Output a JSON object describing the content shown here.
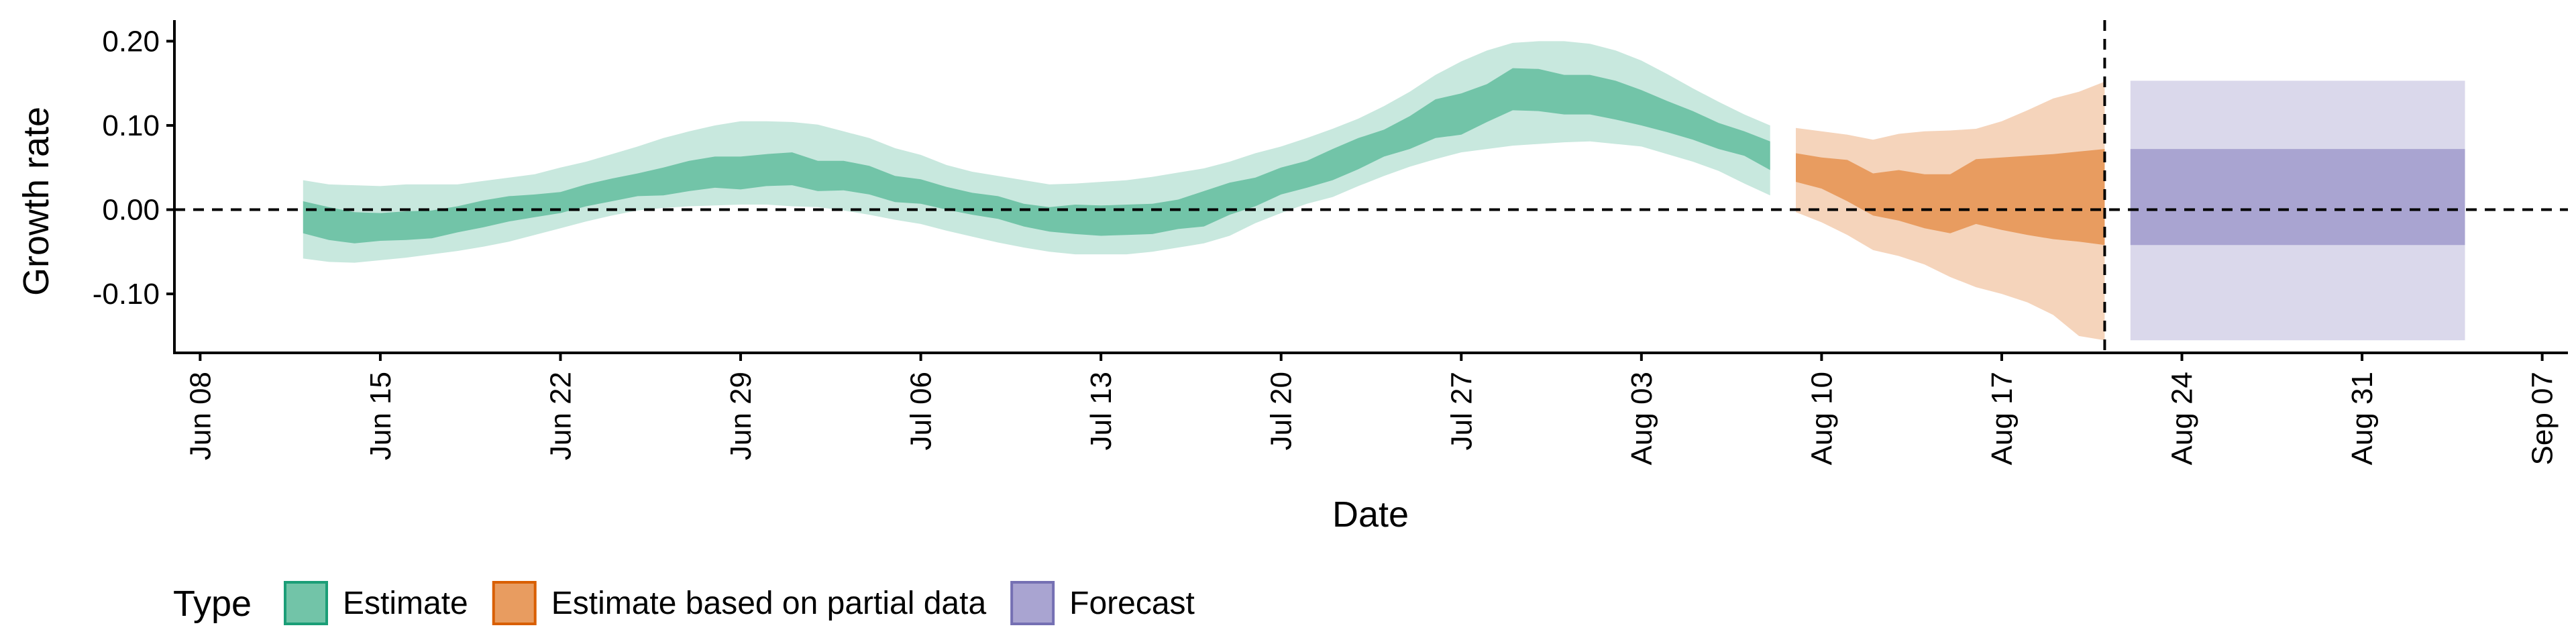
{
  "chart_data": {
    "type": "area",
    "xlabel": "Date",
    "ylabel": "Growth rate",
    "xlim": [
      "2020-06-07",
      "2020-09-08"
    ],
    "ylim": [
      -0.17,
      0.225
    ],
    "x_ticks": [
      {
        "date": "2020-06-08",
        "label": "Jun 08"
      },
      {
        "date": "2020-06-15",
        "label": "Jun 15"
      },
      {
        "date": "2020-06-22",
        "label": "Jun 22"
      },
      {
        "date": "2020-06-29",
        "label": "Jun 29"
      },
      {
        "date": "2020-07-06",
        "label": "Jul 06"
      },
      {
        "date": "2020-07-13",
        "label": "Jul 13"
      },
      {
        "date": "2020-07-20",
        "label": "Jul 20"
      },
      {
        "date": "2020-07-27",
        "label": "Jul 27"
      },
      {
        "date": "2020-08-03",
        "label": "Aug 03"
      },
      {
        "date": "2020-08-10",
        "label": "Aug 10"
      },
      {
        "date": "2020-08-17",
        "label": "Aug 17"
      },
      {
        "date": "2020-08-24",
        "label": "Aug 24"
      },
      {
        "date": "2020-08-31",
        "label": "Aug 31"
      },
      {
        "date": "2020-09-07",
        "label": "Sep 07"
      }
    ],
    "y_ticks": [
      {
        "value": 0.2,
        "label": "0.20"
      },
      {
        "value": 0.1,
        "label": "0.10"
      },
      {
        "value": 0.0,
        "label": "0.00"
      },
      {
        "value": -0.1,
        "label": "-0.10"
      }
    ],
    "reference_lines": {
      "horizontal_y": 0.0,
      "vertical_date": "2020-08-21"
    },
    "grid": false,
    "legend": {
      "title": "Type",
      "position": "bottom",
      "entries": [
        {
          "label": "Estimate",
          "fill": "#72c4a8",
          "stroke": "#1b9e77"
        },
        {
          "label": "Estimate based on partial data",
          "fill": "#e89c60",
          "stroke": "#d95f02"
        },
        {
          "label": "Forecast",
          "fill": "#a9a4d1",
          "stroke": "#7570b3"
        }
      ]
    },
    "series": [
      {
        "name": "Estimate",
        "color_inner": "#72c4a8",
        "color_outer": "#c8e8de",
        "points": [
          {
            "date": "2020-06-12",
            "lo90": -0.058,
            "lo50": -0.028,
            "hi50": 0.01,
            "hi90": 0.035
          },
          {
            "date": "2020-06-13",
            "lo90": -0.062,
            "lo50": -0.036,
            "hi50": 0.003,
            "hi90": 0.03
          },
          {
            "date": "2020-06-14",
            "lo90": -0.063,
            "lo50": -0.04,
            "hi50": -0.003,
            "hi90": 0.029
          },
          {
            "date": "2020-06-15",
            "lo90": -0.06,
            "lo50": -0.037,
            "hi50": -0.004,
            "hi90": 0.028
          },
          {
            "date": "2020-06-16",
            "lo90": -0.057,
            "lo50": -0.036,
            "hi50": -0.002,
            "hi90": 0.03
          },
          {
            "date": "2020-06-17",
            "lo90": -0.053,
            "lo50": -0.034,
            "hi50": -0.001,
            "hi90": 0.03
          },
          {
            "date": "2020-06-18",
            "lo90": -0.049,
            "lo50": -0.027,
            "hi50": 0.004,
            "hi90": 0.03
          },
          {
            "date": "2020-06-19",
            "lo90": -0.044,
            "lo50": -0.021,
            "hi50": 0.011,
            "hi90": 0.034
          },
          {
            "date": "2020-06-20",
            "lo90": -0.038,
            "lo50": -0.014,
            "hi50": 0.016,
            "hi90": 0.038
          },
          {
            "date": "2020-06-21",
            "lo90": -0.03,
            "lo50": -0.009,
            "hi50": 0.018,
            "hi90": 0.042
          },
          {
            "date": "2020-06-22",
            "lo90": -0.022,
            "lo50": -0.004,
            "hi50": 0.021,
            "hi90": 0.05
          },
          {
            "date": "2020-06-23",
            "lo90": -0.014,
            "lo50": 0.004,
            "hi50": 0.03,
            "hi90": 0.057
          },
          {
            "date": "2020-06-24",
            "lo90": -0.007,
            "lo50": 0.01,
            "hi50": 0.037,
            "hi90": 0.066
          },
          {
            "date": "2020-06-25",
            "lo90": -0.001,
            "lo50": 0.016,
            "hi50": 0.043,
            "hi90": 0.075
          },
          {
            "date": "2020-06-26",
            "lo90": 0.002,
            "lo50": 0.017,
            "hi50": 0.05,
            "hi90": 0.085
          },
          {
            "date": "2020-06-27",
            "lo90": 0.004,
            "lo50": 0.022,
            "hi50": 0.058,
            "hi90": 0.093
          },
          {
            "date": "2020-06-28",
            "lo90": 0.005,
            "lo50": 0.026,
            "hi50": 0.063,
            "hi90": 0.1
          },
          {
            "date": "2020-06-29",
            "lo90": 0.006,
            "lo50": 0.024,
            "hi50": 0.063,
            "hi90": 0.105
          },
          {
            "date": "2020-06-30",
            "lo90": 0.006,
            "lo50": 0.028,
            "hi50": 0.066,
            "hi90": 0.105
          },
          {
            "date": "2020-07-01",
            "lo90": 0.004,
            "lo50": 0.029,
            "hi50": 0.068,
            "hi90": 0.104
          },
          {
            "date": "2020-07-02",
            "lo90": 0.003,
            "lo50": 0.022,
            "hi50": 0.058,
            "hi90": 0.101
          },
          {
            "date": "2020-07-03",
            "lo90": -0.001,
            "lo50": 0.023,
            "hi50": 0.058,
            "hi90": 0.093
          },
          {
            "date": "2020-07-04",
            "lo90": -0.006,
            "lo50": 0.018,
            "hi50": 0.052,
            "hi90": 0.085
          },
          {
            "date": "2020-07-05",
            "lo90": -0.012,
            "lo50": 0.009,
            "hi50": 0.04,
            "hi90": 0.073
          },
          {
            "date": "2020-07-06",
            "lo90": -0.017,
            "lo50": 0.007,
            "hi50": 0.036,
            "hi90": 0.065
          },
          {
            "date": "2020-07-07",
            "lo90": -0.025,
            "lo50": 0.0,
            "hi50": 0.027,
            "hi90": 0.053
          },
          {
            "date": "2020-07-08",
            "lo90": -0.032,
            "lo50": -0.006,
            "hi50": 0.02,
            "hi90": 0.045
          },
          {
            "date": "2020-07-09",
            "lo90": -0.039,
            "lo50": -0.011,
            "hi50": 0.016,
            "hi90": 0.04
          },
          {
            "date": "2020-07-10",
            "lo90": -0.045,
            "lo50": -0.02,
            "hi50": 0.007,
            "hi90": 0.035
          },
          {
            "date": "2020-07-11",
            "lo90": -0.05,
            "lo50": -0.026,
            "hi50": 0.003,
            "hi90": 0.03
          },
          {
            "date": "2020-07-12",
            "lo90": -0.053,
            "lo50": -0.029,
            "hi50": 0.006,
            "hi90": 0.031
          },
          {
            "date": "2020-07-13",
            "lo90": -0.053,
            "lo50": -0.031,
            "hi50": 0.005,
            "hi90": 0.033
          },
          {
            "date": "2020-07-14",
            "lo90": -0.053,
            "lo50": -0.03,
            "hi50": 0.006,
            "hi90": 0.035
          },
          {
            "date": "2020-07-15",
            "lo90": -0.05,
            "lo50": -0.029,
            "hi50": 0.007,
            "hi90": 0.039
          },
          {
            "date": "2020-07-16",
            "lo90": -0.045,
            "lo50": -0.023,
            "hi50": 0.012,
            "hi90": 0.044
          },
          {
            "date": "2020-07-17",
            "lo90": -0.04,
            "lo50": -0.02,
            "hi50": 0.022,
            "hi90": 0.049
          },
          {
            "date": "2020-07-18",
            "lo90": -0.031,
            "lo50": -0.006,
            "hi50": 0.032,
            "hi90": 0.057
          },
          {
            "date": "2020-07-19",
            "lo90": -0.016,
            "lo50": 0.004,
            "hi50": 0.038,
            "hi90": 0.067
          },
          {
            "date": "2020-07-20",
            "lo90": -0.004,
            "lo50": 0.018,
            "hi50": 0.05,
            "hi90": 0.075
          },
          {
            "date": "2020-07-21",
            "lo90": 0.007,
            "lo50": 0.026,
            "hi50": 0.058,
            "hi90": 0.085
          },
          {
            "date": "2020-07-22",
            "lo90": 0.015,
            "lo50": 0.035,
            "hi50": 0.072,
            "hi90": 0.096
          },
          {
            "date": "2020-07-23",
            "lo90": 0.028,
            "lo50": 0.048,
            "hi50": 0.085,
            "hi90": 0.108
          },
          {
            "date": "2020-07-24",
            "lo90": 0.04,
            "lo50": 0.063,
            "hi50": 0.095,
            "hi90": 0.123
          },
          {
            "date": "2020-07-25",
            "lo90": 0.051,
            "lo50": 0.072,
            "hi50": 0.111,
            "hi90": 0.14
          },
          {
            "date": "2020-07-26",
            "lo90": 0.06,
            "lo50": 0.085,
            "hi50": 0.131,
            "hi90": 0.16
          },
          {
            "date": "2020-07-27",
            "lo90": 0.068,
            "lo50": 0.089,
            "hi50": 0.138,
            "hi90": 0.176
          },
          {
            "date": "2020-07-28",
            "lo90": 0.072,
            "lo50": 0.104,
            "hi50": 0.149,
            "hi90": 0.189
          },
          {
            "date": "2020-07-29",
            "lo90": 0.076,
            "lo50": 0.118,
            "hi50": 0.168,
            "hi90": 0.198
          },
          {
            "date": "2020-07-30",
            "lo90": 0.078,
            "lo50": 0.117,
            "hi50": 0.167,
            "hi90": 0.2
          },
          {
            "date": "2020-07-31",
            "lo90": 0.08,
            "lo50": 0.113,
            "hi50": 0.16,
            "hi90": 0.2
          },
          {
            "date": "2020-08-01",
            "lo90": 0.081,
            "lo50": 0.113,
            "hi50": 0.16,
            "hi90": 0.197
          },
          {
            "date": "2020-08-02",
            "lo90": 0.078,
            "lo50": 0.107,
            "hi50": 0.153,
            "hi90": 0.189
          },
          {
            "date": "2020-08-03",
            "lo90": 0.075,
            "lo50": 0.1,
            "hi50": 0.142,
            "hi90": 0.177
          },
          {
            "date": "2020-08-04",
            "lo90": 0.066,
            "lo50": 0.092,
            "hi50": 0.129,
            "hi90": 0.161
          },
          {
            "date": "2020-08-05",
            "lo90": 0.057,
            "lo50": 0.083,
            "hi50": 0.117,
            "hi90": 0.144
          },
          {
            "date": "2020-08-06",
            "lo90": 0.046,
            "lo50": 0.072,
            "hi50": 0.103,
            "hi90": 0.128
          },
          {
            "date": "2020-08-07",
            "lo90": 0.031,
            "lo50": 0.064,
            "hi50": 0.093,
            "hi90": 0.113
          },
          {
            "date": "2020-08-08",
            "lo90": 0.017,
            "lo50": 0.047,
            "hi50": 0.081,
            "hi90": 0.1
          }
        ]
      },
      {
        "name": "Estimate based on partial data",
        "color_inner": "#e89c60",
        "color_outer": "#f5d4bb",
        "points": [
          {
            "date": "2020-08-09",
            "lo90": -0.003,
            "lo50": 0.033,
            "hi50": 0.067,
            "hi90": 0.097
          },
          {
            "date": "2020-08-10",
            "lo90": -0.015,
            "lo50": 0.025,
            "hi50": 0.062,
            "hi90": 0.093
          },
          {
            "date": "2020-08-11",
            "lo90": -0.03,
            "lo50": 0.01,
            "hi50": 0.059,
            "hi90": 0.089
          },
          {
            "date": "2020-08-12",
            "lo90": -0.048,
            "lo50": -0.007,
            "hi50": 0.043,
            "hi90": 0.083
          },
          {
            "date": "2020-08-13",
            "lo90": -0.055,
            "lo50": -0.013,
            "hi50": 0.047,
            "hi90": 0.09
          },
          {
            "date": "2020-08-14",
            "lo90": -0.065,
            "lo50": -0.022,
            "hi50": 0.042,
            "hi90": 0.093
          },
          {
            "date": "2020-08-15",
            "lo90": -0.08,
            "lo50": -0.028,
            "hi50": 0.042,
            "hi90": 0.094
          },
          {
            "date": "2020-08-16",
            "lo90": -0.092,
            "lo50": -0.017,
            "hi50": 0.06,
            "hi90": 0.096
          },
          {
            "date": "2020-08-17",
            "lo90": -0.1,
            "lo50": -0.024,
            "hi50": 0.062,
            "hi90": 0.105
          },
          {
            "date": "2020-08-18",
            "lo90": -0.11,
            "lo50": -0.03,
            "hi50": 0.064,
            "hi90": 0.118
          },
          {
            "date": "2020-08-19",
            "lo90": -0.125,
            "lo50": -0.035,
            "hi50": 0.066,
            "hi90": 0.132
          },
          {
            "date": "2020-08-20",
            "lo90": -0.15,
            "lo50": -0.038,
            "hi50": 0.069,
            "hi90": 0.14
          },
          {
            "date": "2020-08-21",
            "lo90": -0.155,
            "lo50": -0.042,
            "hi50": 0.072,
            "hi90": 0.152
          }
        ]
      },
      {
        "name": "Forecast",
        "color_inner": "#a9a4d1",
        "color_outer": "#dad8eb",
        "points": [
          {
            "date": "2020-08-22",
            "lo90": -0.155,
            "lo50": -0.042,
            "hi50": 0.072,
            "hi90": 0.153
          },
          {
            "date": "2020-09-04",
            "lo90": -0.155,
            "lo50": -0.042,
            "hi50": 0.072,
            "hi90": 0.153
          }
        ]
      }
    ]
  }
}
